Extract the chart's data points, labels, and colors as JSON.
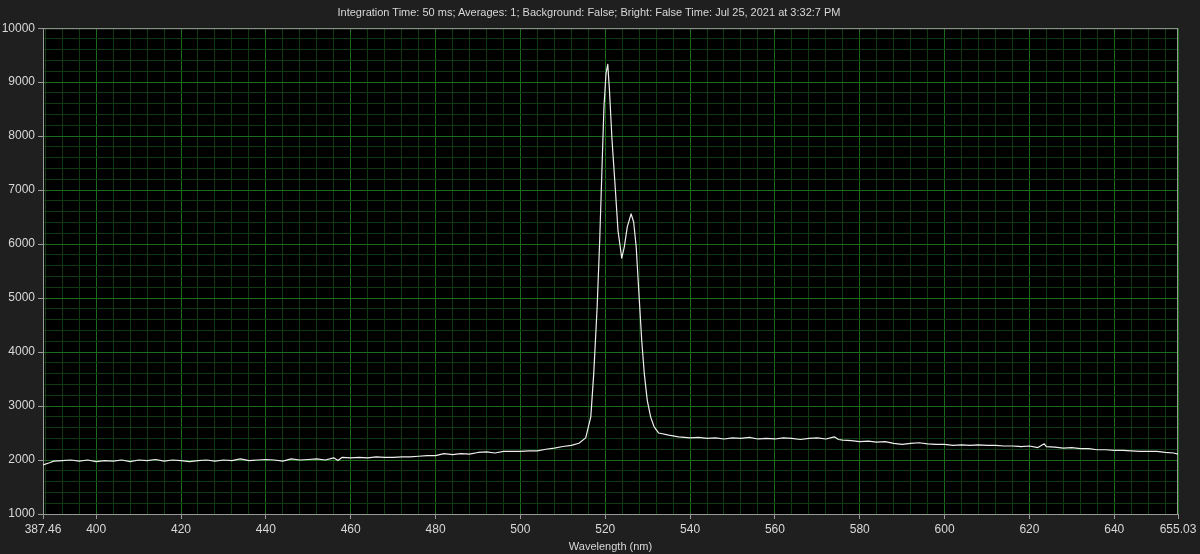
{
  "chart_data": {
    "type": "line",
    "title": "Integration Time: 50 ms; Averages: 1; Background: False; Bright: False Time: Jul 25, 2021 at 3:32:7 PM",
    "xlabel": "Wavelength (nm)",
    "xlim": [
      387.46,
      655.03
    ],
    "xticks": [
      387.46,
      {
        "value": 388,
        "label": null
      },
      {
        "value": 392,
        "label": null
      },
      {
        "value": 396,
        "label": null
      },
      400,
      {
        "value": 404,
        "label": null
      },
      {
        "value": 408,
        "label": null
      },
      {
        "value": 412,
        "label": null
      },
      {
        "value": 416,
        "label": null
      },
      420,
      {
        "value": 424,
        "label": null
      },
      {
        "value": 428,
        "label": null
      },
      {
        "value": 432,
        "label": null
      },
      {
        "value": 436,
        "label": null
      },
      440,
      {
        "value": 444,
        "label": null
      },
      {
        "value": 448,
        "label": null
      },
      {
        "value": 452,
        "label": null
      },
      {
        "value": 456,
        "label": null
      },
      460,
      {
        "value": 464,
        "label": null
      },
      {
        "value": 468,
        "label": null
      },
      {
        "value": 472,
        "label": null
      },
      {
        "value": 476,
        "label": null
      },
      480,
      {
        "value": 484,
        "label": null
      },
      {
        "value": 488,
        "label": null
      },
      {
        "value": 492,
        "label": null
      },
      {
        "value": 496,
        "label": null
      },
      500,
      {
        "value": 504,
        "label": null
      },
      {
        "value": 508,
        "label": null
      },
      {
        "value": 512,
        "label": null
      },
      {
        "value": 516,
        "label": null
      },
      520,
      {
        "value": 524,
        "label": null
      },
      {
        "value": 528,
        "label": null
      },
      {
        "value": 532,
        "label": null
      },
      {
        "value": 536,
        "label": null
      },
      540,
      {
        "value": 544,
        "label": null
      },
      {
        "value": 548,
        "label": null
      },
      {
        "value": 552,
        "label": null
      },
      {
        "value": 556,
        "label": null
      },
      560,
      {
        "value": 564,
        "label": null
      },
      {
        "value": 568,
        "label": null
      },
      {
        "value": 572,
        "label": null
      },
      {
        "value": 576,
        "label": null
      },
      580,
      {
        "value": 584,
        "label": null
      },
      {
        "value": 588,
        "label": null
      },
      {
        "value": 592,
        "label": null
      },
      {
        "value": 596,
        "label": null
      },
      600,
      {
        "value": 604,
        "label": null
      },
      {
        "value": 608,
        "label": null
      },
      {
        "value": 612,
        "label": null
      },
      {
        "value": 616,
        "label": null
      },
      620,
      {
        "value": 624,
        "label": null
      },
      {
        "value": 628,
        "label": null
      },
      {
        "value": 632,
        "label": null
      },
      {
        "value": 636,
        "label": null
      },
      640,
      {
        "value": 644,
        "label": null
      },
      {
        "value": 648,
        "label": null
      },
      {
        "value": 652,
        "label": null
      },
      655.03
    ],
    "ylim": [
      1000,
      10000
    ],
    "yticks": [
      1000,
      {
        "value": 1200,
        "label": null
      },
      {
        "value": 1400,
        "label": null
      },
      {
        "value": 1600,
        "label": null
      },
      {
        "value": 1800,
        "label": null
      },
      2000,
      {
        "value": 2200,
        "label": null
      },
      {
        "value": 2400,
        "label": null
      },
      {
        "value": 2600,
        "label": null
      },
      {
        "value": 2800,
        "label": null
      },
      3000,
      {
        "value": 3200,
        "label": null
      },
      {
        "value": 3400,
        "label": null
      },
      {
        "value": 3600,
        "label": null
      },
      {
        "value": 3800,
        "label": null
      },
      4000,
      {
        "value": 4200,
        "label": null
      },
      {
        "value": 4400,
        "label": null
      },
      {
        "value": 4600,
        "label": null
      },
      {
        "value": 4800,
        "label": null
      },
      5000,
      {
        "value": 5200,
        "label": null
      },
      {
        "value": 5400,
        "label": null
      },
      {
        "value": 5600,
        "label": null
      },
      {
        "value": 5800,
        "label": null
      },
      6000,
      {
        "value": 6200,
        "label": null
      },
      {
        "value": 6400,
        "label": null
      },
      {
        "value": 6600,
        "label": null
      },
      {
        "value": 6800,
        "label": null
      },
      7000,
      {
        "value": 7200,
        "label": null
      },
      {
        "value": 7400,
        "label": null
      },
      {
        "value": 7600,
        "label": null
      },
      {
        "value": 7800,
        "label": null
      },
      8000,
      {
        "value": 8200,
        "label": null
      },
      {
        "value": 8400,
        "label": null
      },
      {
        "value": 8600,
        "label": null
      },
      {
        "value": 8800,
        "label": null
      },
      9000,
      {
        "value": 9200,
        "label": null
      },
      {
        "value": 9400,
        "label": null
      },
      {
        "value": 9600,
        "label": null
      },
      {
        "value": 9800,
        "label": null
      },
      10000
    ],
    "grid": true,
    "x": [
      387.46,
      389,
      390,
      392,
      394,
      396,
      398,
      400,
      402,
      404,
      406,
      408,
      410,
      412,
      414,
      416,
      418,
      420,
      422,
      424,
      426,
      428,
      430,
      432,
      434,
      436,
      438,
      440,
      442,
      444,
      446,
      448,
      450,
      452,
      454,
      456,
      457,
      458,
      460,
      462,
      464,
      466,
      468,
      470,
      472,
      474,
      476,
      478,
      480,
      482,
      484,
      486,
      488,
      490,
      492,
      494,
      496,
      498,
      500,
      502,
      504,
      506,
      508,
      510,
      512,
      513.8,
      515.4,
      516.6,
      517.3,
      518.1,
      518.7,
      519.2,
      519.7,
      520.2,
      520.6,
      521.0,
      521.6,
      522.4,
      523.0,
      523.9,
      524.5,
      525.2,
      526.1,
      526.7,
      527.3,
      527.9,
      528.6,
      529.2,
      529.9,
      530.7,
      531.5,
      532.6,
      535,
      537.3,
      540,
      542,
      544,
      546,
      548,
      550,
      552,
      554,
      556,
      558,
      560,
      562,
      564,
      566,
      568,
      570,
      572,
      574,
      575,
      576,
      578,
      580,
      582,
      584,
      586,
      588,
      590,
      592,
      594,
      596,
      598,
      600,
      602,
      604,
      606,
      608,
      610,
      612,
      614,
      616,
      618,
      620,
      622,
      623.5,
      624,
      626,
      628,
      630,
      632,
      634,
      636,
      638,
      640,
      642,
      644,
      646,
      648,
      650,
      652,
      654,
      655.03
    ],
    "series": [
      {
        "color": "#eeeeee",
        "values": [
          1910,
          1950,
          1980,
          1990,
          2000,
          1980,
          2000,
          1970,
          1990,
          1980,
          2000,
          1970,
          2000,
          1990,
          2010,
          1980,
          2000,
          1990,
          1970,
          1990,
          2000,
          1980,
          2000,
          1990,
          2020,
          1990,
          2000,
          2010,
          2000,
          1980,
          2020,
          2000,
          2010,
          2020,
          2000,
          2040,
          1990,
          2050,
          2040,
          2050,
          2040,
          2060,
          2050,
          2050,
          2060,
          2060,
          2070,
          2080,
          2080,
          2120,
          2100,
          2120,
          2110,
          2140,
          2150,
          2130,
          2160,
          2160,
          2160,
          2170,
          2170,
          2200,
          2220,
          2250,
          2270,
          2310,
          2410,
          2800,
          3610,
          4840,
          6070,
          7310,
          8540,
          9170,
          9330,
          8850,
          7930,
          7000,
          6260,
          5740,
          5950,
          6320,
          6560,
          6410,
          5950,
          5150,
          4220,
          3610,
          3110,
          2800,
          2620,
          2500,
          2460,
          2430,
          2410,
          2420,
          2400,
          2410,
          2390,
          2410,
          2400,
          2420,
          2390,
          2400,
          2390,
          2410,
          2400,
          2380,
          2400,
          2410,
          2390,
          2430,
          2380,
          2370,
          2360,
          2340,
          2350,
          2330,
          2340,
          2310,
          2290,
          2310,
          2320,
          2300,
          2290,
          2290,
          2270,
          2280,
          2270,
          2280,
          2270,
          2270,
          2260,
          2260,
          2250,
          2260,
          2230,
          2300,
          2250,
          2240,
          2220,
          2230,
          2210,
          2210,
          2190,
          2190,
          2180,
          2180,
          2170,
          2160,
          2160,
          2160,
          2140,
          2130,
          2110
        ]
      }
    ]
  }
}
